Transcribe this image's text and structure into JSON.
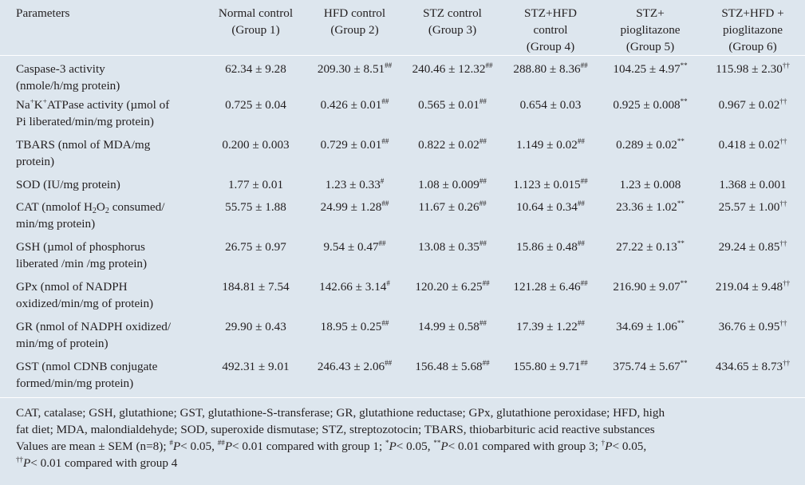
{
  "headers": {
    "parameters": "Parameters",
    "g1_line1": "Normal control",
    "g1_line2": "(Group 1)",
    "g2_line1": "HFD control",
    "g2_line2": "(Group 2)",
    "g3_line1": "STZ control",
    "g3_line2": "(Group 3)",
    "g4_line1": "STZ+HFD",
    "g4_line2": "control",
    "g4_line3": "(Group 4)",
    "g5_line1": "STZ+",
    "g5_line2": "pioglitazone",
    "g5_line3": "(Group 5)",
    "g6_line1": "STZ+HFD +",
    "g6_line2": "pioglitazone",
    "g6_line3": "(Group 6)"
  },
  "rows": [
    {
      "param_a": "Caspase-3 activity",
      "param_b": "(nmole/h/mg protein)",
      "v1": "62.34 ± 9.28",
      "s1": "",
      "v2": "209.30 ± 8.51",
      "s2": "##",
      "v3": "240.46 ± 12.32",
      "s3": "##",
      "v4": "288.80 ± 8.36",
      "s4": "##",
      "v5": "104.25 ± 4.97",
      "s5": "**",
      "v6": "115.98 ± 2.30",
      "s6": "††"
    },
    {
      "param_a1": "Na",
      "param_sup1": "+",
      "param_a2": "K",
      "param_sup2": "+",
      "param_a3": "ATPase activity (µmol of",
      "param_b": "Pi liberated/min/mg protein)",
      "v1": "0.725 ± 0.04",
      "s1": "",
      "v2": "0.426 ± 0.01",
      "s2": "##",
      "v3": "0.565 ± 0.01",
      "s3": "##",
      "v4": "0.654 ± 0.03",
      "s4": "",
      "v5": "0.925 ± 0.008",
      "s5": "**",
      "v6": "0.967 ± 0.02",
      "s6": "††"
    },
    {
      "param_a": "TBARS (nmol of MDA/mg",
      "param_b": "protein)",
      "v1": "0.200 ± 0.003",
      "s1": "",
      "v2": "0.729 ± 0.01",
      "s2": "##",
      "v3": "0.822 ± 0.02",
      "s3": "##",
      "v4": "1.149 ± 0.02",
      "s4": "##",
      "v5": "0.289 ± 0.02",
      "s5": "**",
      "v6": "0.418 ± 0.02",
      "s6": "††"
    },
    {
      "param_a": "SOD (IU/mg protein)",
      "v1": "1.77 ± 0.01",
      "s1": "",
      "v2": "1.23 ± 0.33",
      "s2": "#",
      "v3": "1.08 ± 0.009",
      "s3": "##",
      "v4": "1.123 ± 0.015",
      "s4": "##",
      "v5": "1.23 ± 0.008",
      "s5": "",
      "v6": "1.368 ± 0.001",
      "s6": ""
    },
    {
      "param_a1": "CAT (nmolof H",
      "param_sub": "2",
      "param_a2": "O",
      "param_sub2": "2",
      "param_a3": " consumed/",
      "param_b": "min/mg protein)",
      "v1": "55.75 ± 1.88",
      "s1": "",
      "v2": "24.99 ± 1.28",
      "s2": "##",
      "v3": "11.67 ± 0.26",
      "s3": "##",
      "v4": "10.64 ± 0.34",
      "s4": "##",
      "v5": "23.36 ± 1.02",
      "s5": "**",
      "v6": "25.57 ± 1.00",
      "s6": "††"
    },
    {
      "param_a": "GSH (µmol of phosphorus",
      "param_b": "liberated /min /mg protein)",
      "v1": "26.75 ± 0.97",
      "s1": "",
      "v2": "9.54 ± 0.47",
      "s2": "##",
      "v3": "13.08 ± 0.35",
      "s3": "##",
      "v4": "15.86 ± 0.48",
      "s4": "##",
      "v5": "27.22 ± 0.13",
      "s5": "**",
      "v6": "29.24 ± 0.85",
      "s6": "††"
    },
    {
      "param_a": "GPx (nmol of NADPH",
      "param_b": "oxidized/min/mg of protein)",
      "v1": "184.81 ± 7.54",
      "s1": "",
      "v2": "142.66 ± 3.14",
      "s2": "#",
      "v3": "120.20 ± 6.25",
      "s3": "##",
      "v4": "121.28 ± 6.46",
      "s4": "##",
      "v5": "216.90 ± 9.07",
      "s5": "**",
      "v6": "219.04 ± 9.48",
      "s6": "††"
    },
    {
      "param_a": "GR (nmol of NADPH oxidized/",
      "param_b": "min/mg of protein)",
      "v1": "29.90 ± 0.43",
      "s1": "",
      "v2": "18.95 ± 0.25",
      "s2": "##",
      "v3": "14.99 ± 0.58",
      "s3": "##",
      "v4": "17.39 ± 1.22",
      "s4": "##",
      "v5": "34.69 ± 1.06",
      "s5": "**",
      "v6": "36.76 ± 0.95",
      "s6": "††"
    },
    {
      "param_a": "GST (nmol CDNB conjugate",
      "param_b": "formed/min/mg protein)",
      "v1": "492.31 ± 9.01",
      "s1": "",
      "v2": "246.43 ± 2.06",
      "s2": "##",
      "v3": "156.48 ± 5.68",
      "s3": "##",
      "v4": "155.80 ± 9.71",
      "s4": "##",
      "v5": "375.74 ± 5.67",
      "s5": "**",
      "v6": "434.65 ± 8.73",
      "s6": "††"
    }
  ],
  "footnote": {
    "abbrev_line1": "CAT, catalase; GSH, glutathione; GST, glutathione-S-transferase; GR, glutathione reductase; GPx, glutathione peroxidase; HFD, high",
    "abbrev_line2": "fat diet; MDA, malondialdehyde; SOD, superoxide dismutase; STZ, streptozotocin; TBARS, thiobarbituric acid reactive substances",
    "stats_a": "Values are mean ± SEM (n=8); ",
    "sym1": "#",
    "p1": "P",
    "t1": "< 0.05, ",
    "sym2": "##",
    "p2": "P",
    "t2": "< 0.01 compared with group 1; ",
    "sym3": "*",
    "p3": "P",
    "t3": "< 0.05, ",
    "sym4": "**",
    "p4": "P",
    "t4": "< 0.01 compared with group 3; ",
    "sym5": "†",
    "p5": "P",
    "t5": "< 0.05,",
    "sym6": "††",
    "p6": "P",
    "t6": "< 0.01 compared with group 4"
  },
  "colors": {
    "table_bg": "#dde6ee",
    "rule": "#ffffff",
    "text": "#231f20"
  }
}
